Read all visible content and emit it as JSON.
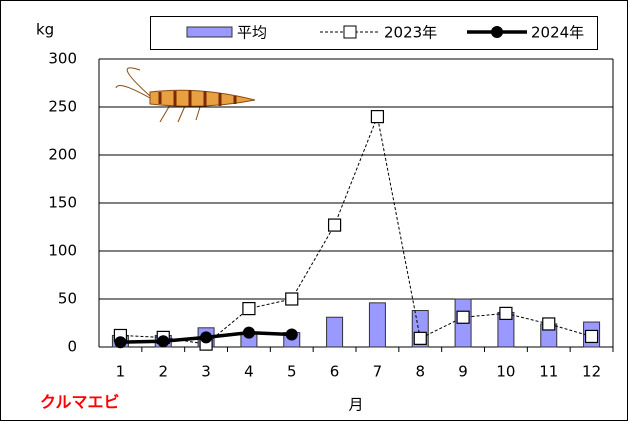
{
  "chart_data": {
    "type": "combo",
    "y_label": "kg",
    "x_label": "月",
    "annotation": "クルマエビ",
    "categories": [
      "1",
      "2",
      "3",
      "4",
      "5",
      "6",
      "7",
      "8",
      "9",
      "10",
      "11",
      "12"
    ],
    "series": [
      {
        "name": "平均",
        "type": "bar",
        "color": "#9999ff",
        "values": [
          12,
          12,
          20,
          15,
          15,
          31,
          46,
          38,
          50,
          36,
          24,
          26
        ]
      },
      {
        "name": "2023年",
        "type": "line",
        "marker": "square",
        "dashed": true,
        "color": "#000000",
        "values": [
          12,
          10,
          3,
          40,
          50,
          127,
          240,
          9,
          31,
          35,
          24,
          11
        ]
      },
      {
        "name": "2024年",
        "type": "line",
        "marker": "circle",
        "dashed": false,
        "color": "#000000",
        "values": [
          5,
          6,
          10,
          15,
          13,
          null,
          null,
          null,
          null,
          null,
          null,
          null
        ]
      }
    ],
    "ylim": [
      0,
      300
    ],
    "yticks": [
      0,
      50,
      100,
      150,
      200,
      250,
      300
    ],
    "grid": true
  }
}
